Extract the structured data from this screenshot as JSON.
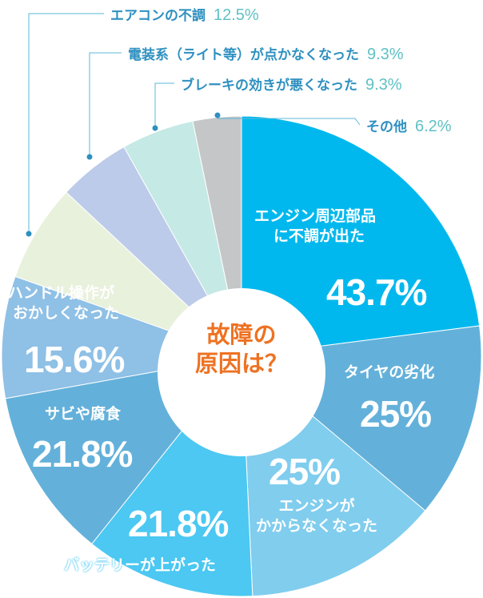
{
  "chart_data": {
    "type": "pie",
    "center_label": [
      "故障の",
      "原因は？"
    ],
    "slices": [
      {
        "label": "エンジン周辺部品に不調が出た",
        "lines": [
          "エンジン周辺部品",
          "に不調が出た"
        ],
        "value": 43.7,
        "value_label": "43.7%",
        "color": "#00b8ee"
      },
      {
        "label": "タイヤの劣化",
        "lines": [
          "タイヤの劣化"
        ],
        "value": 25,
        "value_label": "25%",
        "color": "#63b1da"
      },
      {
        "label": "エンジンがかからなくなった",
        "lines": [
          "エンジンが",
          "かからなくなった"
        ],
        "value": 25,
        "value_label": "25%",
        "color": "#80cdee"
      },
      {
        "label": "バッテリーが上がった",
        "lines": [
          "バッテリーが上がった"
        ],
        "value": 21.8,
        "value_label": "21.8%",
        "color": "#4cc8f2"
      },
      {
        "label": "サビや腐食",
        "lines": [
          "サビや腐食"
        ],
        "value": 21.8,
        "value_label": "21.8%",
        "color": "#63b1da"
      },
      {
        "label": "ハンドル操作がおかしくなった",
        "lines": [
          "ハンドル操作が",
          "おかしくなった"
        ],
        "value": 15.6,
        "value_label": "15.6%",
        "color": "#8fc0e6"
      },
      {
        "label": "エアコンの不調",
        "lines": [
          "エアコンの不調"
        ],
        "value": 12.5,
        "value_label": "12.5%",
        "color": "#e8f1dc"
      },
      {
        "label": "電装系（ライト等）が点かなくなった",
        "lines": [
          "電装系（ライト等）が点かなくなった"
        ],
        "value": 9.3,
        "value_label": "9.3%",
        "color": "#bccbe9"
      },
      {
        "label": "ブレーキの効きが悪くなった",
        "lines": [
          "ブレーキの効きが悪くなった"
        ],
        "value": 9.3,
        "value_label": "9.3%",
        "color": "#c5e9e5"
      },
      {
        "label": "その他",
        "lines": [
          "その他"
        ],
        "value": 6.2,
        "value_label": "6.2%",
        "color": "#c5c6c8"
      }
    ]
  }
}
